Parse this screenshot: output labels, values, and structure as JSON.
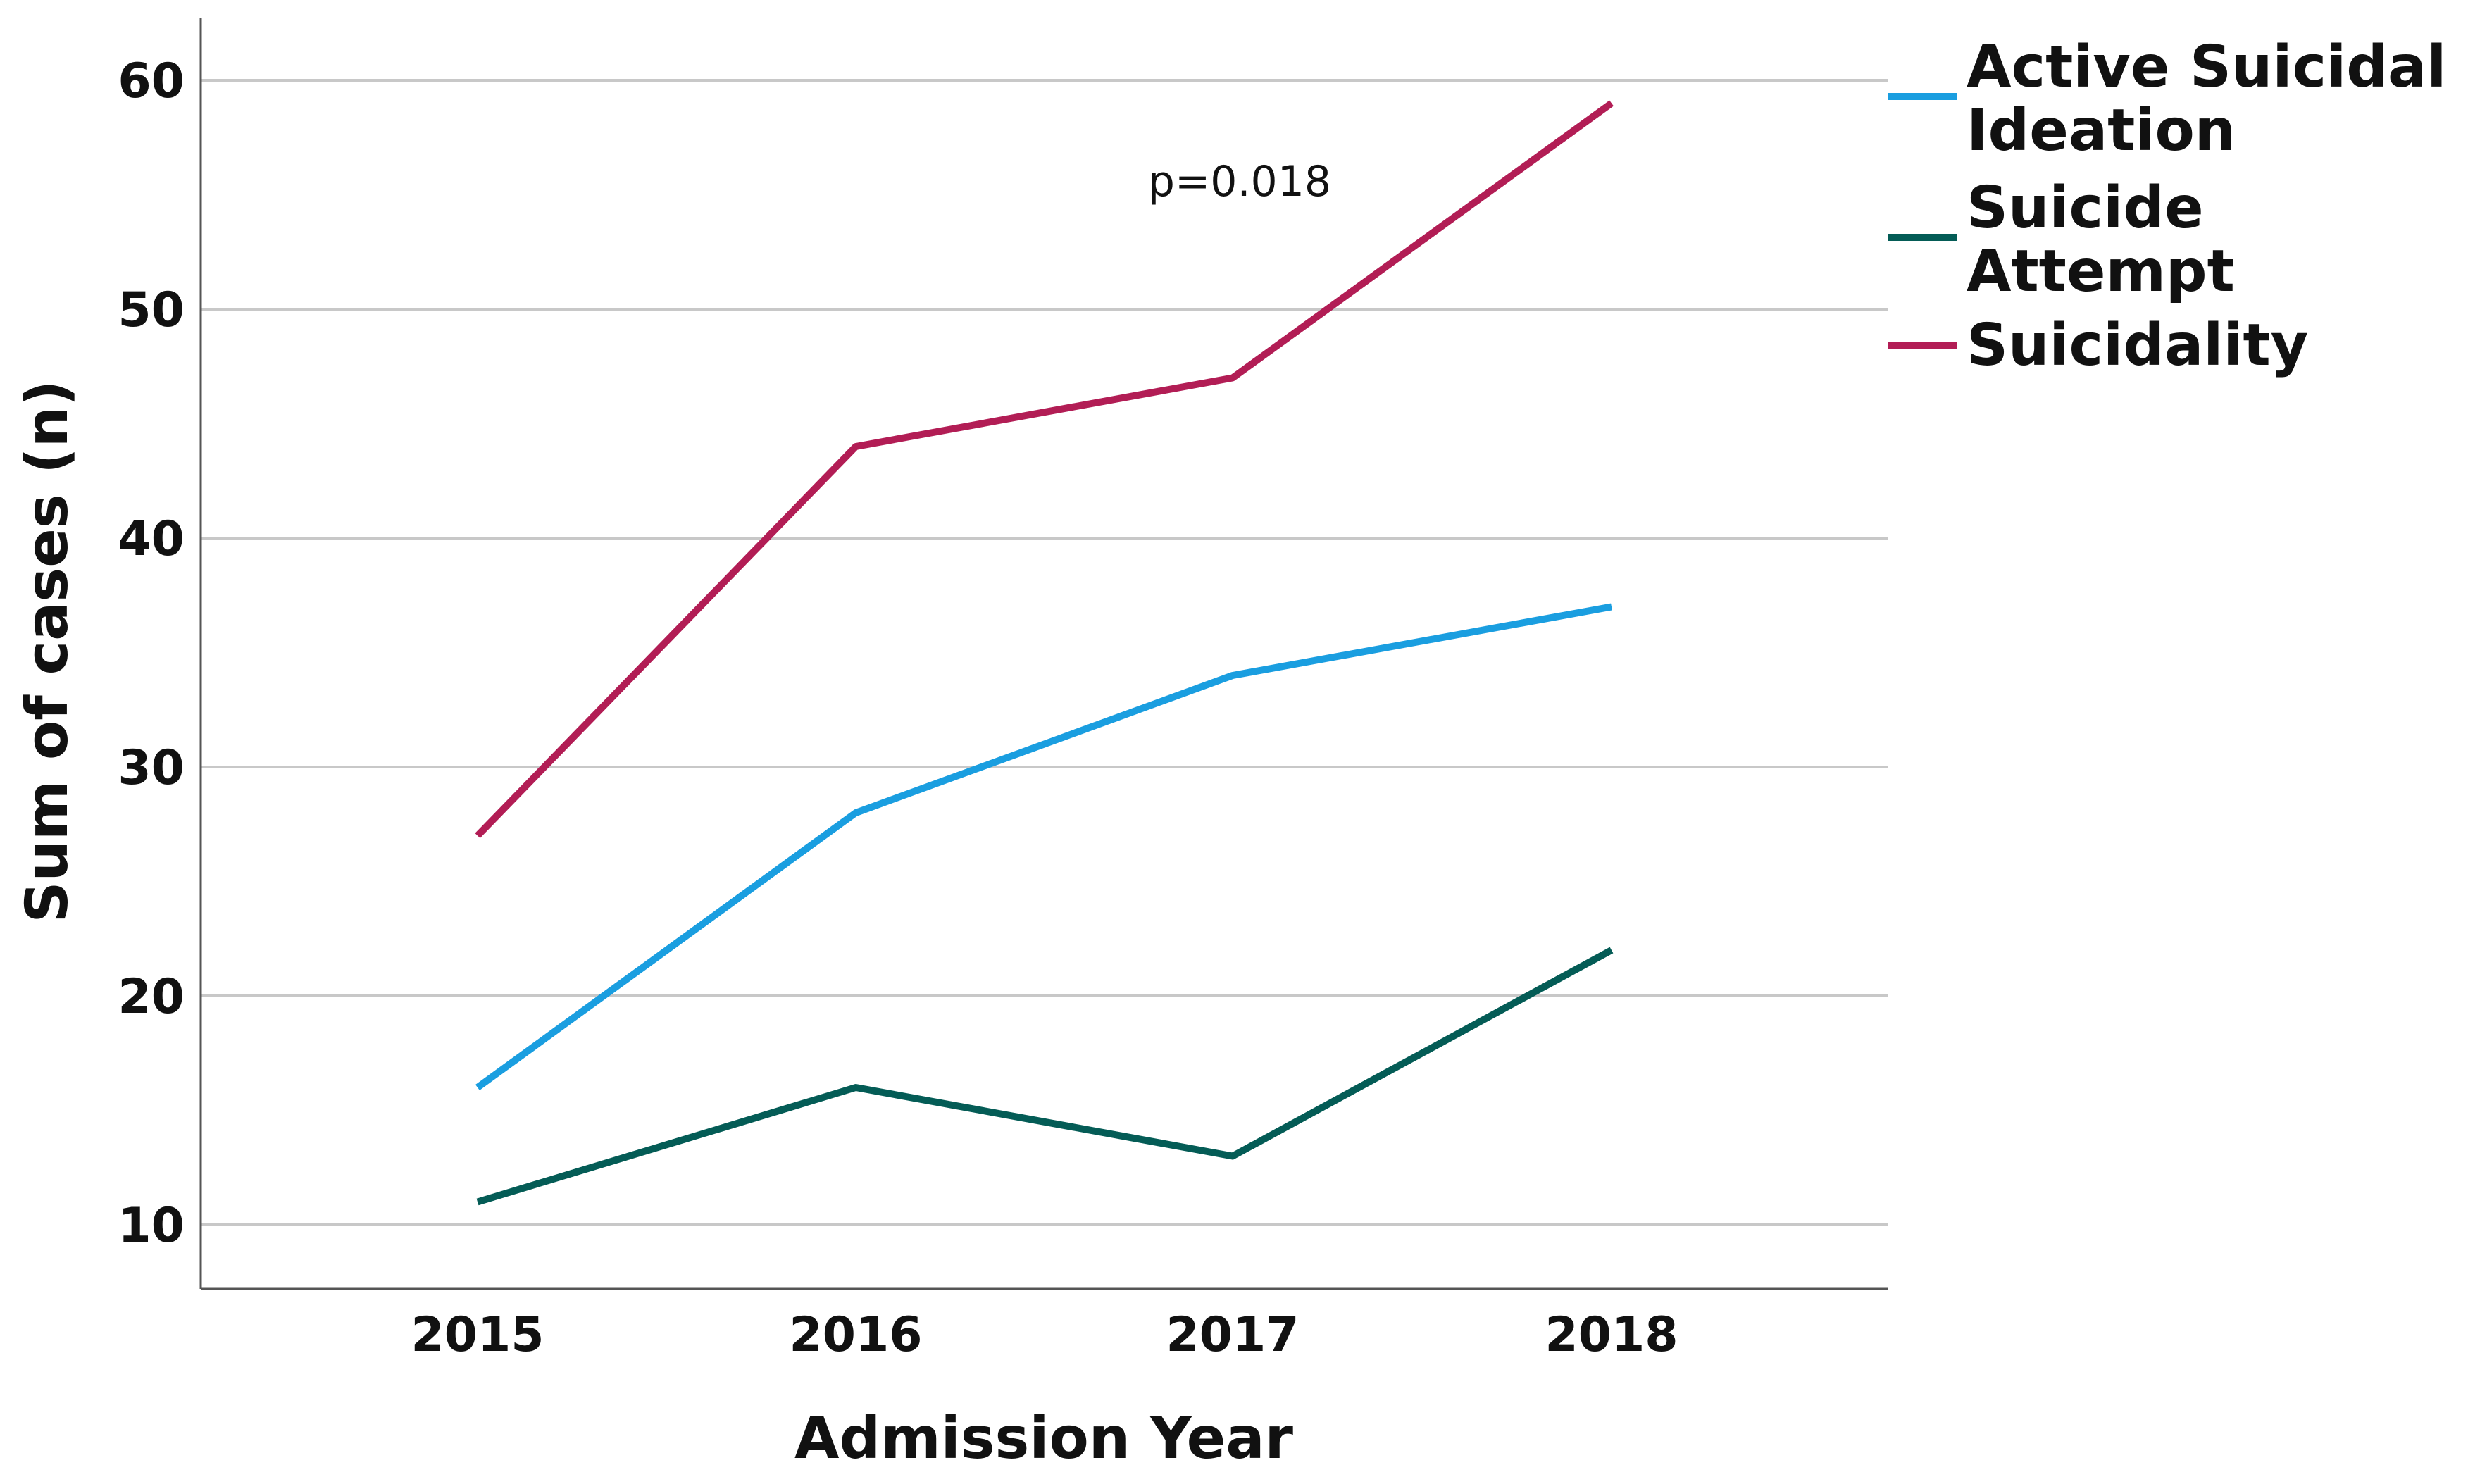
{
  "chart_data": {
    "type": "line",
    "title": "",
    "xlabel": "Admission Year",
    "ylabel": "Sum of cases (n)",
    "categories": [
      "2015",
      "2016",
      "2017",
      "2018"
    ],
    "y_ticks": [
      10,
      20,
      30,
      40,
      50,
      60
    ],
    "ylim": [
      7,
      63
    ],
    "grid": true,
    "legend_position": "top-right",
    "annotation": "p=0.018",
    "series": [
      {
        "name": "Active Suicidal Ideation",
        "legend_lines": [
          "Active Suicidal",
          "Ideation"
        ],
        "color": "#1a9ee0",
        "values": [
          16,
          28,
          34,
          37
        ]
      },
      {
        "name": "Suicide Attempt",
        "legend_lines": [
          "Suicide",
          "Attempt"
        ],
        "color": "#045c56",
        "values": [
          11,
          16,
          13,
          22
        ]
      },
      {
        "name": "Suicidality",
        "legend_lines": [
          "Suicidality"
        ],
        "color": "#b21d55",
        "values": [
          27,
          44,
          47,
          59
        ]
      }
    ]
  }
}
